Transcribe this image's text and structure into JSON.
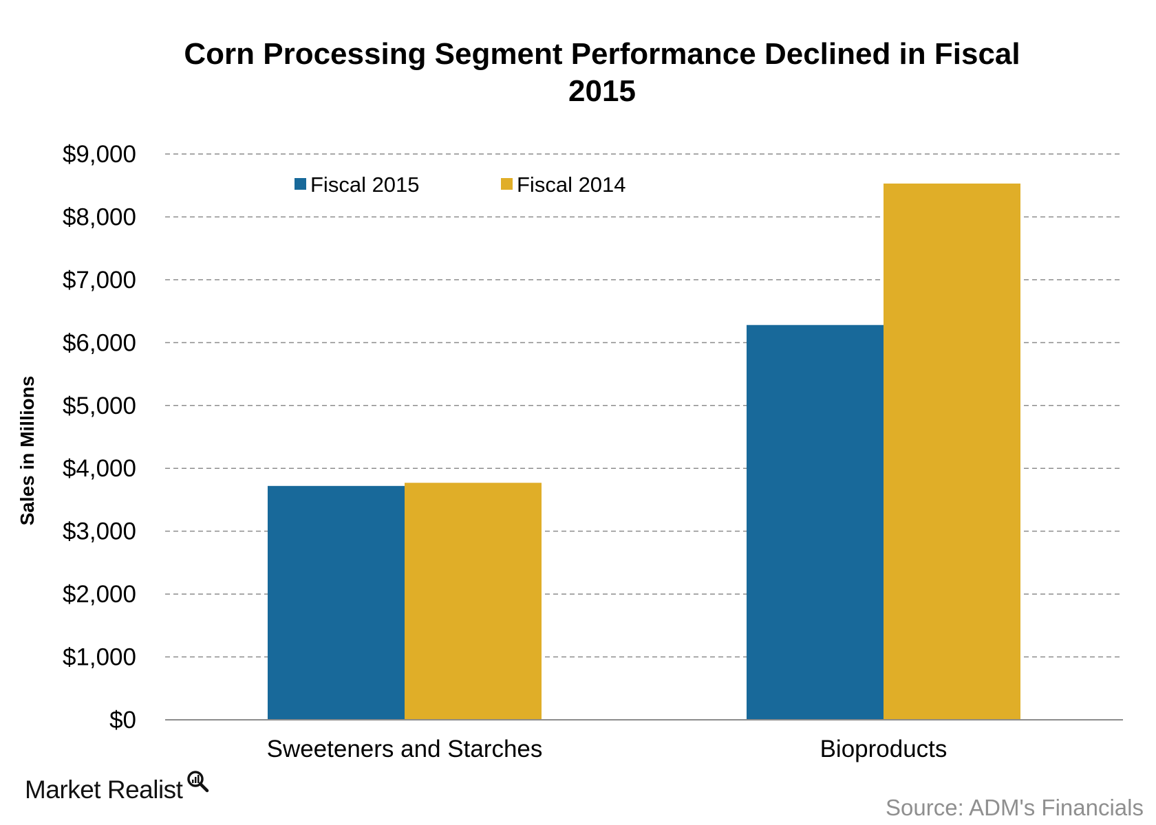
{
  "chart_data": {
    "type": "bar",
    "title": [
      "Corn Processing Segment Performance Declined in Fiscal",
      "2015"
    ],
    "ylabel": "Sales in Millions",
    "xlabel": "",
    "categories": [
      "Sweeteners and Starches",
      "Bioproducts"
    ],
    "series": [
      {
        "name": "Fiscal 2015",
        "color": "#18699a",
        "values": [
          3720,
          6280
        ]
      },
      {
        "name": "Fiscal 2014",
        "color": "#e0ae28",
        "values": [
          3770,
          8530
        ]
      }
    ],
    "ylim": [
      0,
      9000
    ],
    "yticks": [
      0,
      1000,
      2000,
      3000,
      4000,
      5000,
      6000,
      7000,
      8000,
      9000
    ],
    "ytick_labels": [
      "$0",
      "$1,000",
      "$2,000",
      "$3,000",
      "$4,000",
      "$5,000",
      "$6,000",
      "$7,000",
      "$8,000",
      "$9,000"
    ],
    "grid": true,
    "grid_style": "dashed",
    "legend_position": "top-left"
  },
  "branding": {
    "logo_text": "Market Realist",
    "logo_icon": "magnifier-icon"
  },
  "source": "Source: ADM's Financials"
}
